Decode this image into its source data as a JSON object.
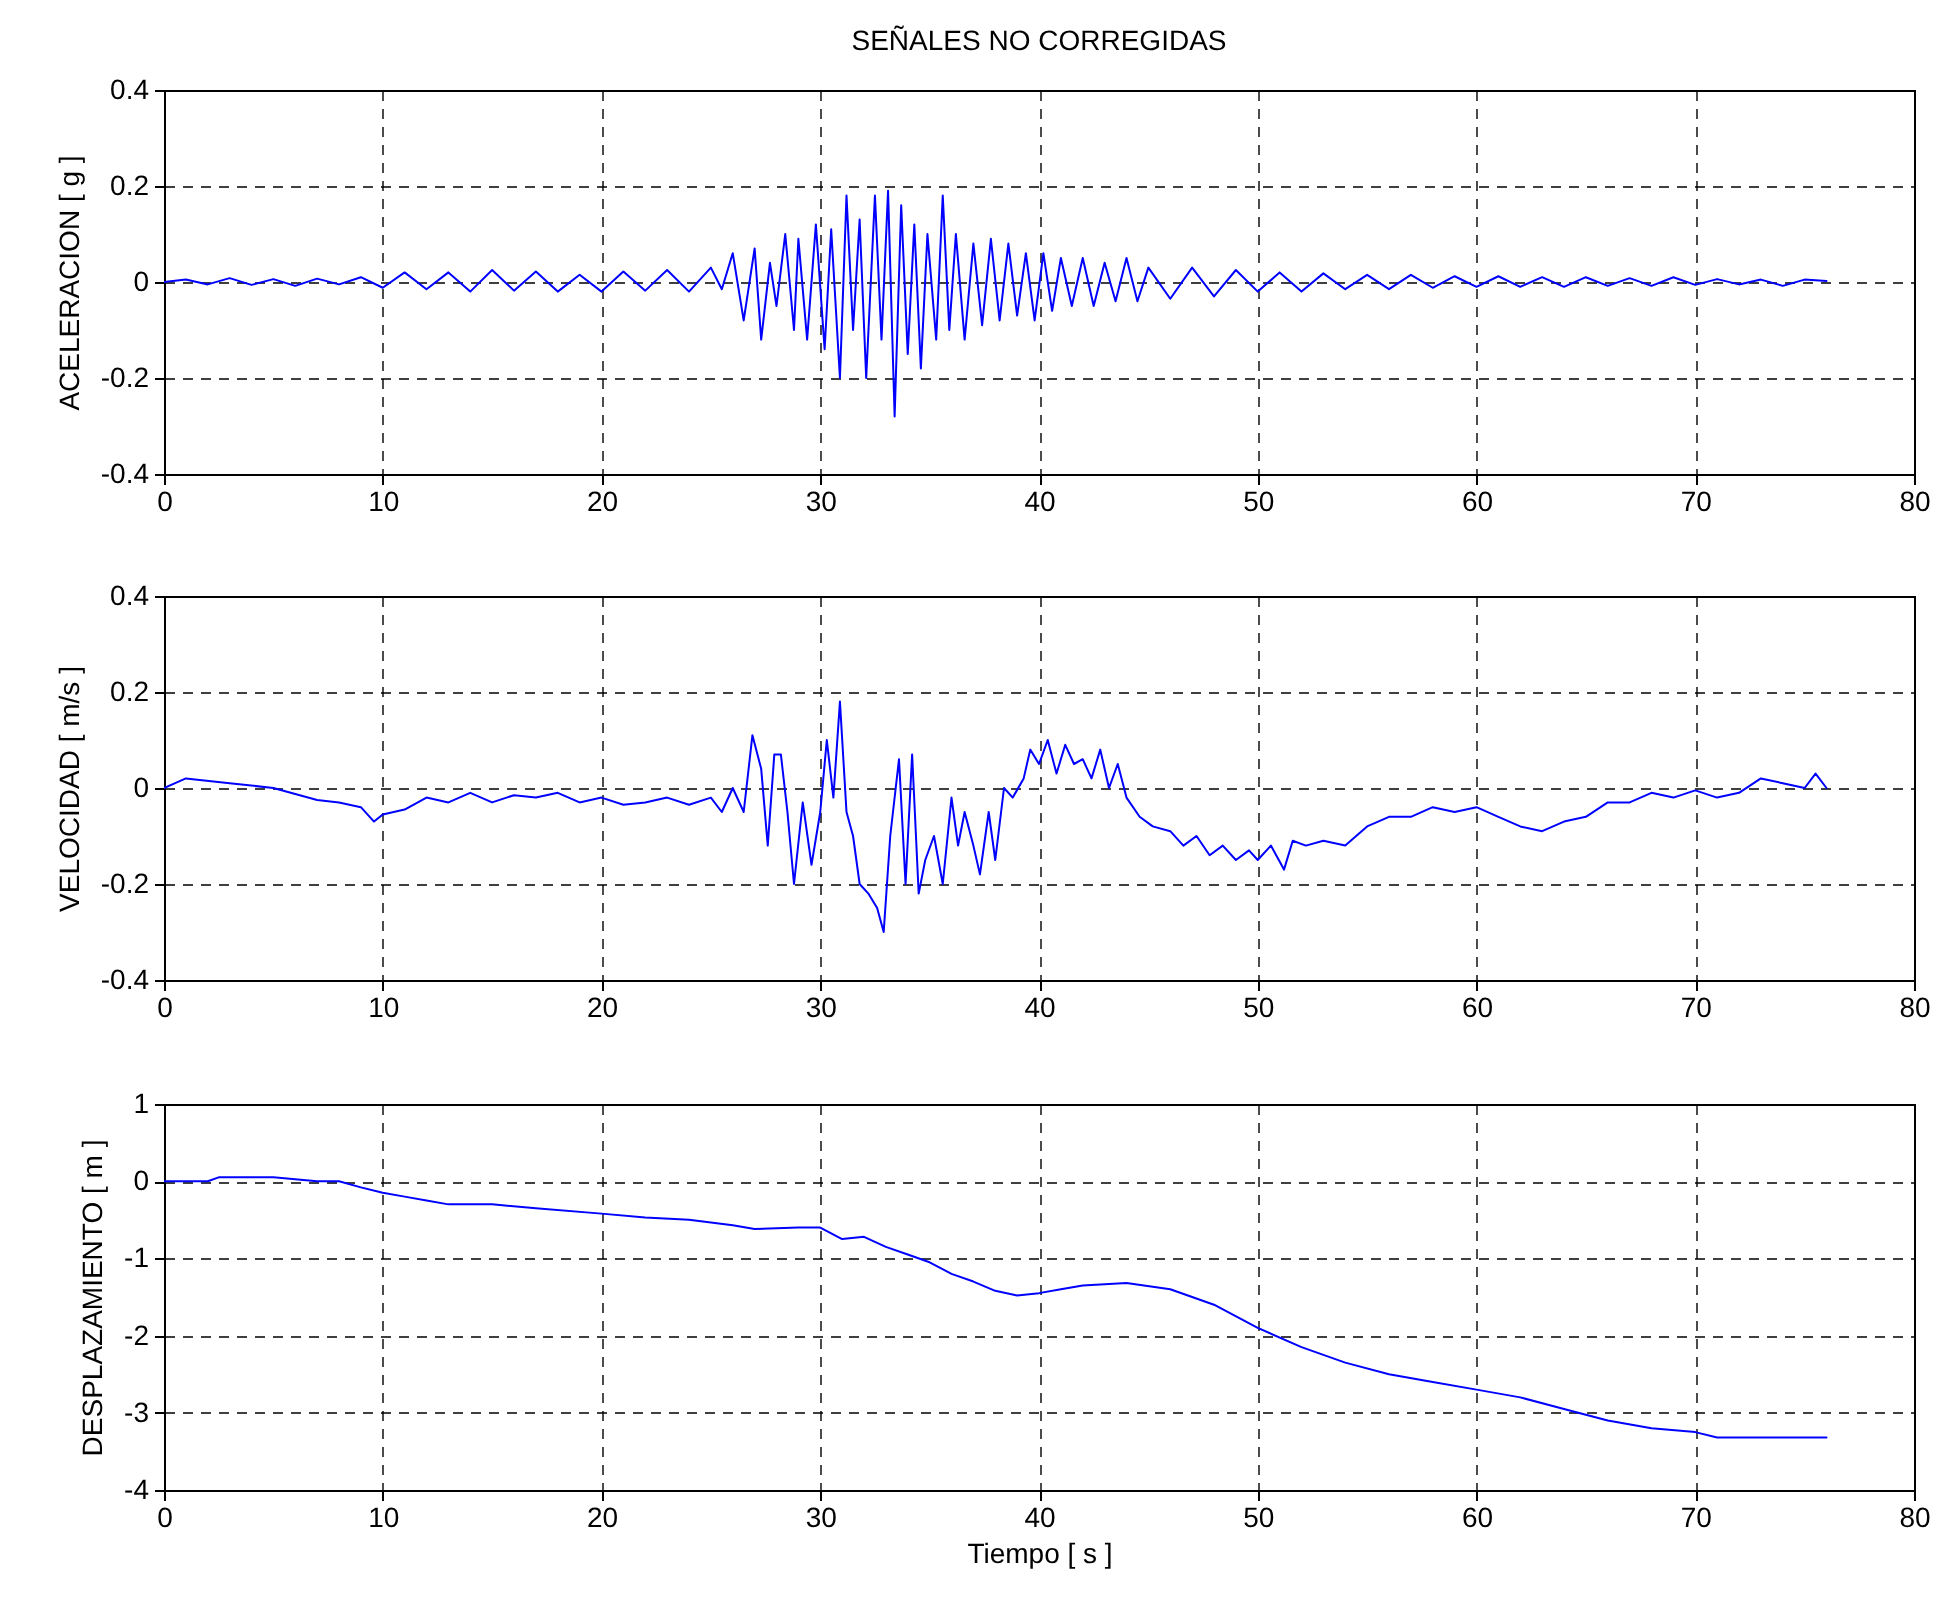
{
  "chart_data": [
    {
      "type": "line",
      "title": "SEÑALES  NO  CORREGIDAS",
      "ylabel": "ACELERACION [ g ]",
      "xlim": [
        0,
        80
      ],
      "xticks": [
        0,
        10,
        20,
        30,
        40,
        50,
        60,
        70,
        80
      ],
      "ylim": [
        -0.4,
        0.4
      ],
      "yticks": [
        -0.4,
        -0.2,
        0,
        0.2,
        0.4
      ],
      "grid": true,
      "x": [
        0,
        1,
        2,
        3,
        4,
        5,
        6,
        7,
        8,
        9,
        10,
        11,
        12,
        13,
        14,
        15,
        16,
        17,
        18,
        19,
        20,
        21,
        22,
        23,
        24,
        25,
        25.5,
        26,
        26.5,
        27,
        27.3,
        27.7,
        28,
        28.4,
        28.8,
        29,
        29.4,
        29.8,
        30.2,
        30.5,
        30.9,
        31.2,
        31.5,
        31.8,
        32.1,
        32.5,
        32.8,
        33.1,
        33.4,
        33.7,
        34,
        34.3,
        34.6,
        34.9,
        35.3,
        35.6,
        35.9,
        36.2,
        36.6,
        37,
        37.4,
        37.8,
        38.2,
        38.6,
        39,
        39.4,
        39.8,
        40.2,
        40.6,
        41,
        41.5,
        42,
        42.5,
        43,
        43.5,
        44,
        44.5,
        45,
        46,
        47,
        48,
        49,
        50,
        51,
        52,
        53,
        54,
        55,
        56,
        57,
        58,
        59,
        60,
        61,
        62,
        63,
        64,
        65,
        66,
        67,
        68,
        69,
        70,
        71,
        72,
        73,
        74,
        75,
        76
      ],
      "series": [
        {
          "color": "#0000ff",
          "values": [
            0,
            0.005,
            -0.005,
            0.008,
            -0.006,
            0.006,
            -0.008,
            0.007,
            -0.005,
            0.01,
            -0.012,
            0.02,
            -0.015,
            0.02,
            -0.02,
            0.025,
            -0.018,
            0.022,
            -0.02,
            0.015,
            -0.02,
            0.022,
            -0.018,
            0.025,
            -0.02,
            0.03,
            -0.015,
            0.06,
            -0.08,
            0.07,
            -0.12,
            0.04,
            -0.05,
            0.1,
            -0.1,
            0.09,
            -0.12,
            0.12,
            -0.14,
            0.11,
            -0.2,
            0.18,
            -0.1,
            0.13,
            -0.2,
            0.18,
            -0.12,
            0.19,
            -0.28,
            0.16,
            -0.15,
            0.12,
            -0.18,
            0.1,
            -0.12,
            0.18,
            -0.1,
            0.1,
            -0.12,
            0.08,
            -0.09,
            0.09,
            -0.08,
            0.08,
            -0.07,
            0.06,
            -0.08,
            0.06,
            -0.06,
            0.05,
            -0.05,
            0.05,
            -0.05,
            0.04,
            -0.04,
            0.05,
            -0.04,
            0.03,
            -0.035,
            0.03,
            -0.03,
            0.025,
            -0.02,
            0.02,
            -0.02,
            0.018,
            -0.015,
            0.015,
            -0.015,
            0.015,
            -0.012,
            0.012,
            -0.01,
            0.012,
            -0.01,
            0.01,
            -0.01,
            0.01,
            -0.008,
            0.008,
            -0.008,
            0.01,
            -0.006,
            0.006,
            -0.005,
            0.005,
            -0.008,
            0.005,
            0.002
          ]
        }
      ]
    },
    {
      "type": "line",
      "ylabel": "VELOCIDAD [ m/s ]",
      "xlim": [
        0,
        80
      ],
      "xticks": [
        0,
        10,
        20,
        30,
        40,
        50,
        60,
        70,
        80
      ],
      "ylim": [
        -0.4,
        0.4
      ],
      "yticks": [
        -0.4,
        -0.2,
        0,
        0.2,
        0.4
      ],
      "grid": true,
      "x": [
        0,
        1,
        3,
        5,
        7,
        8,
        9,
        9.6,
        10,
        11,
        12,
        13,
        14,
        15,
        16,
        17,
        18,
        19,
        20,
        21,
        22,
        23,
        24,
        25,
        25.5,
        26,
        26.5,
        26.9,
        27.3,
        27.6,
        27.9,
        28.2,
        28.5,
        28.8,
        29.2,
        29.6,
        30,
        30.3,
        30.6,
        30.9,
        31.2,
        31.5,
        31.8,
        32.2,
        32.6,
        32.9,
        33.2,
        33.6,
        33.9,
        34.2,
        34.5,
        34.8,
        35.2,
        35.6,
        36,
        36.3,
        36.6,
        37,
        37.3,
        37.7,
        38,
        38.4,
        38.8,
        39.3,
        39.6,
        40,
        40.4,
        40.8,
        41.2,
        41.6,
        42,
        42.4,
        42.8,
        43.2,
        43.6,
        44,
        44.6,
        45.2,
        46,
        46.6,
        47.2,
        47.8,
        48.4,
        49,
        49.6,
        50,
        50.6,
        51.2,
        51.6,
        52.2,
        53,
        54,
        55,
        56,
        57,
        58,
        59,
        60,
        61,
        62,
        63,
        64,
        65,
        66,
        67,
        68,
        69,
        70,
        71,
        72,
        73,
        74,
        75,
        75.5,
        76
      ],
      "series": [
        {
          "color": "#0000ff",
          "values": [
            0,
            0.02,
            0.01,
            0,
            -0.025,
            -0.03,
            -0.04,
            -0.07,
            -0.055,
            -0.045,
            -0.02,
            -0.03,
            -0.01,
            -0.03,
            -0.015,
            -0.02,
            -0.01,
            -0.03,
            -0.02,
            -0.035,
            -0.03,
            -0.02,
            -0.035,
            -0.02,
            -0.05,
            0,
            -0.05,
            0.11,
            0.04,
            -0.12,
            0.07,
            0.07,
            -0.05,
            -0.2,
            -0.03,
            -0.16,
            -0.05,
            0.1,
            -0.02,
            0.18,
            -0.05,
            -0.1,
            -0.2,
            -0.22,
            -0.25,
            -0.3,
            -0.1,
            0.06,
            -0.2,
            0.07,
            -0.22,
            -0.15,
            -0.1,
            -0.2,
            -0.02,
            -0.12,
            -0.05,
            -0.12,
            -0.18,
            -0.05,
            -0.15,
            0,
            -0.02,
            0.02,
            0.08,
            0.05,
            0.1,
            0.03,
            0.09,
            0.05,
            0.06,
            0.02,
            0.08,
            0,
            0.05,
            -0.02,
            -0.06,
            -0.08,
            -0.09,
            -0.12,
            -0.1,
            -0.14,
            -0.12,
            -0.15,
            -0.13,
            -0.15,
            -0.12,
            -0.17,
            -0.11,
            -0.12,
            -0.11,
            -0.12,
            -0.08,
            -0.06,
            -0.06,
            -0.04,
            -0.05,
            -0.04,
            -0.06,
            -0.08,
            -0.09,
            -0.07,
            -0.06,
            -0.03,
            -0.03,
            -0.01,
            -0.02,
            -0.005,
            -0.02,
            -0.01,
            0.02,
            0.01,
            0,
            0.03,
            0
          ]
        }
      ]
    },
    {
      "type": "line",
      "ylabel": "DESPLAZAMIENTO [ m ]",
      "xlabel": "Tiempo [ s ]",
      "xlim": [
        0,
        80
      ],
      "xticks": [
        0,
        10,
        20,
        30,
        40,
        50,
        60,
        70,
        80
      ],
      "ylim": [
        -4,
        1
      ],
      "yticks": [
        -4,
        -3,
        -2,
        -1,
        0,
        1
      ],
      "grid": true,
      "x": [
        0,
        2,
        2.5,
        5,
        7,
        8,
        9,
        10,
        11,
        12,
        13,
        15,
        17,
        20,
        22,
        24,
        26,
        27,
        29,
        30,
        31,
        32,
        33,
        34,
        35,
        36,
        37,
        38,
        39,
        40,
        41,
        42,
        44,
        46,
        48,
        50,
        52,
        54,
        56,
        58,
        60,
        62,
        64,
        66,
        68,
        70,
        71,
        76
      ],
      "series": [
        {
          "color": "#0000ff",
          "values": [
            0,
            0,
            0.05,
            0.05,
            0,
            0,
            -0.08,
            -0.15,
            -0.2,
            -0.25,
            -0.3,
            -0.3,
            -0.35,
            -0.42,
            -0.47,
            -0.5,
            -0.57,
            -0.62,
            -0.6,
            -0.6,
            -0.75,
            -0.72,
            -0.85,
            -0.95,
            -1.05,
            -1.2,
            -1.3,
            -1.42,
            -1.48,
            -1.45,
            -1.4,
            -1.35,
            -1.32,
            -1.4,
            -1.6,
            -1.9,
            -2.15,
            -2.35,
            -2.5,
            -2.6,
            -2.7,
            -2.8,
            -2.95,
            -3.1,
            -3.2,
            -3.25,
            -3.32,
            -3.32
          ]
        }
      ]
    }
  ]
}
